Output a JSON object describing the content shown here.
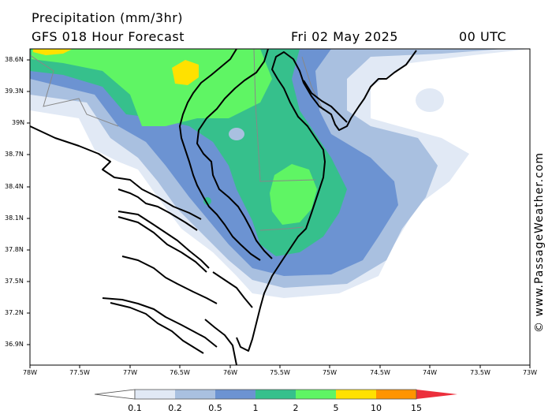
{
  "header": {
    "title": "Precipitation (mm/3hr)",
    "subtitle": "GFS 018 Hour Forecast",
    "date": "Fri 02 May 2025",
    "time": "00 UTC"
  },
  "credit": "© www.PassageWeather.com",
  "axes": {
    "lat_labels": [
      "38.6N",
      "39.3N",
      "39N",
      "38.7N",
      "38.4N",
      "38.1N",
      "37.8N",
      "37.5N",
      "37.2N",
      "36.9N"
    ],
    "lon_labels": [
      "78W",
      "77.5W",
      "77W",
      "76.5W",
      "76W",
      "75.5W",
      "75W",
      "74.5W",
      "74W",
      "73.5W",
      "73W"
    ]
  },
  "legend": {
    "labels": [
      "0.1",
      "0.2",
      "0.5",
      "1",
      "2",
      "5",
      "10",
      "15"
    ],
    "colors": [
      "#e1e9f5",
      "#a9c0e0",
      "#6c93d2",
      "#36c08c",
      "#5ff564",
      "#ffe100",
      "#ff9400",
      "#ec2f3c"
    ]
  },
  "colors": {
    "land_outline": "#000000",
    "state_border": "#888888"
  }
}
